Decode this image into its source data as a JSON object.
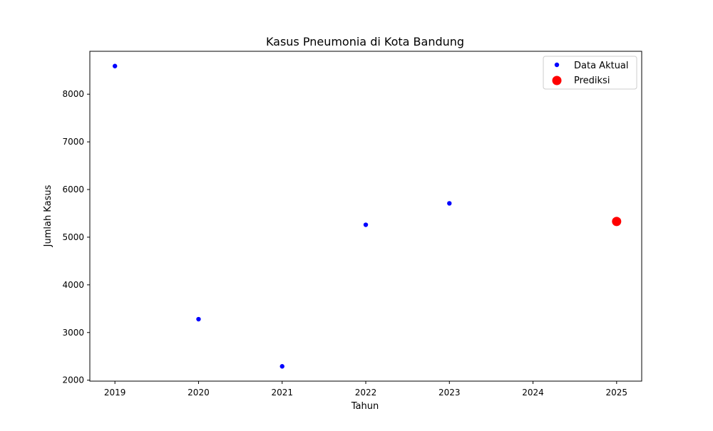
{
  "chart_data": {
    "type": "scatter",
    "title": "Kasus Pneumonia di Kota Bandung",
    "xlabel": "Tahun",
    "ylabel": "Jumlah Kasus",
    "xlim": [
      2018.7,
      2025.3
    ],
    "ylim": [
      1980,
      8900
    ],
    "xticks": [
      2019,
      2020,
      2021,
      2022,
      2023,
      2024,
      2025
    ],
    "yticks": [
      2000,
      3000,
      4000,
      5000,
      6000,
      7000,
      8000
    ],
    "grid": false,
    "legend_position": "top-right",
    "series": [
      {
        "name": "Data Aktual",
        "color": "#0000ff",
        "marker": "small-circle",
        "x": [
          2019,
          2020,
          2021,
          2022,
          2023
        ],
        "y": [
          8590,
          3280,
          2290,
          5260,
          5710
        ]
      },
      {
        "name": "Prediksi",
        "color": "#ff0000",
        "marker": "large-circle",
        "x": [
          2025
        ],
        "y": [
          5330
        ]
      }
    ]
  }
}
